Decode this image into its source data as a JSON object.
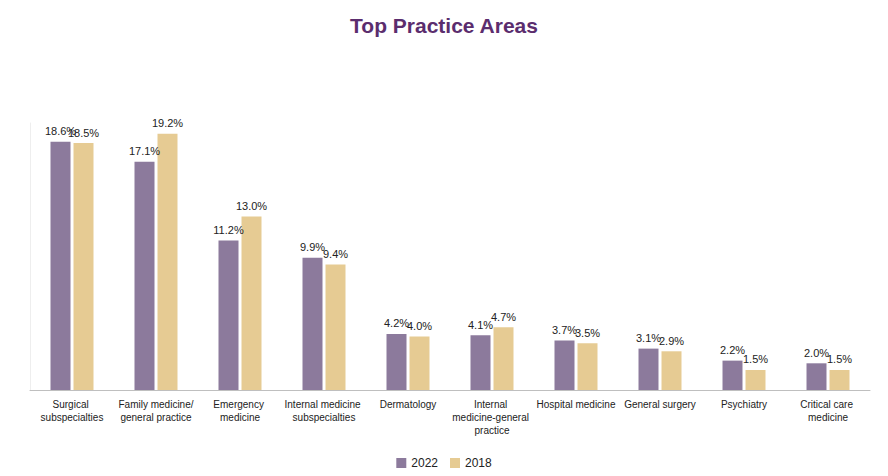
{
  "chart_data": {
    "type": "bar",
    "title": "Top Practice Areas",
    "categories": [
      "Surgical subspecialties",
      "Family medicine/general practice",
      "Emergency medicine",
      "Internal medicine subspecialties",
      "Dermatology",
      "Internal medicine-general practice",
      "Hospital medicine",
      "General surgery",
      "Psychiatry",
      "Critical care medicine"
    ],
    "series": [
      {
        "name": "2022",
        "color": "#8c7a9c",
        "values": [
          18.6,
          17.1,
          11.2,
          9.9,
          4.2,
          4.1,
          3.7,
          3.1,
          2.2,
          2.0
        ],
        "value_labels": [
          "18.6%",
          "17.1%",
          "11.2%",
          "9.9%",
          "4.2%",
          "4.1%",
          "3.7%",
          "3.1%",
          "2.2%",
          "2.0%"
        ]
      },
      {
        "name": "2018",
        "color": "#e6cb93",
        "values": [
          18.5,
          19.2,
          13.0,
          9.4,
          4.0,
          4.7,
          3.5,
          2.9,
          1.5,
          1.5
        ],
        "value_labels": [
          "18.5%",
          "19.2%",
          "13.0%",
          "9.4%",
          "4.0%",
          "4.7%",
          "3.5%",
          "2.9%",
          "1.5%",
          "1.5%"
        ]
      }
    ],
    "ylim": [
      0,
      20
    ],
    "grid": false,
    "legend": "bottom",
    "data_labels": true,
    "tick_labels": "x"
  }
}
